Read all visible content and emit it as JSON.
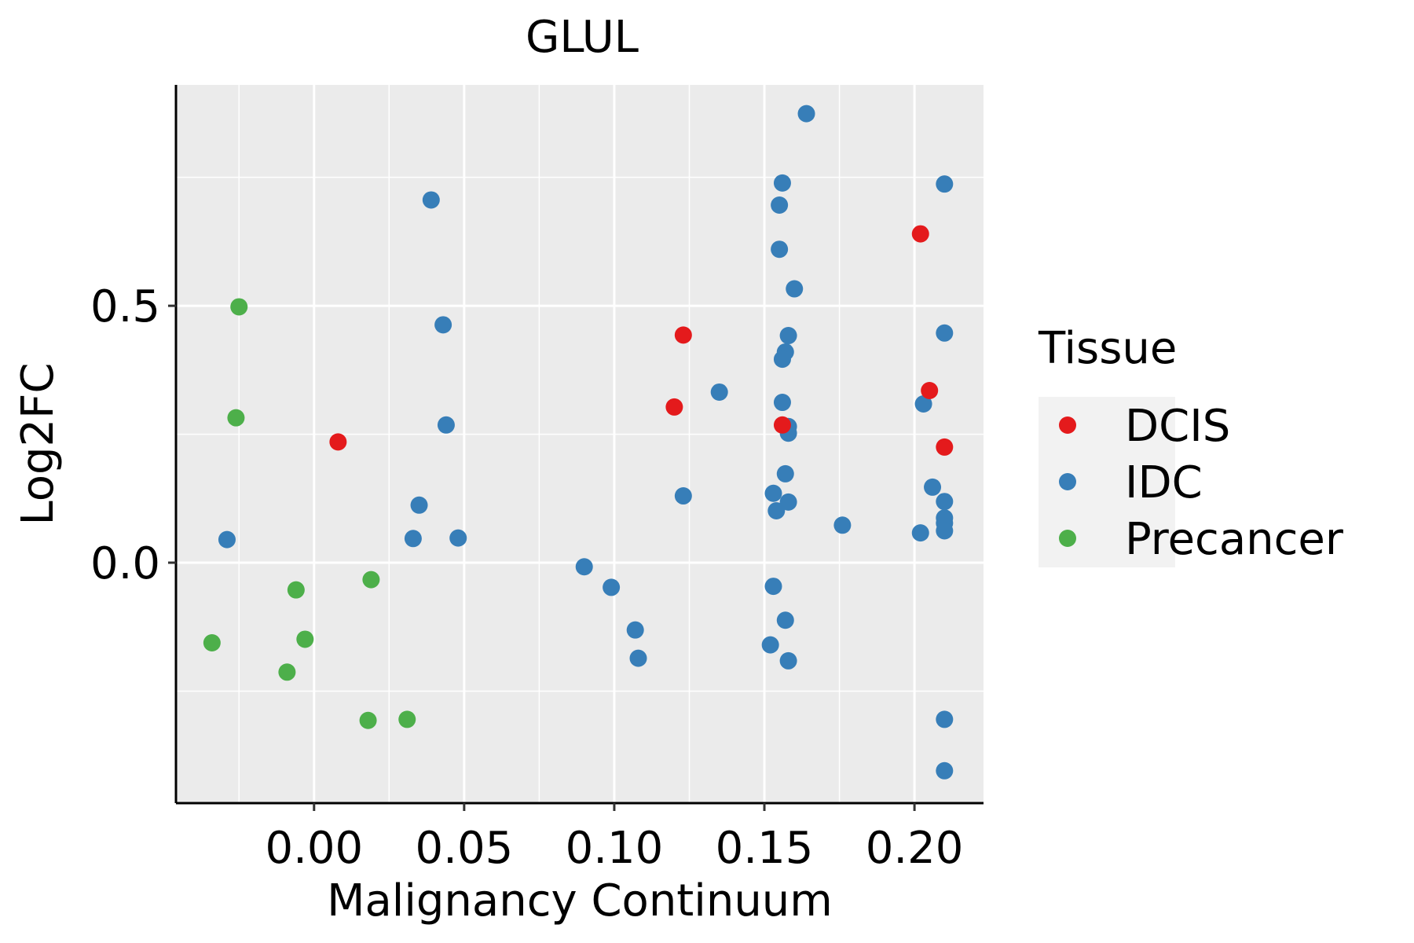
{
  "chart_data": {
    "type": "scatter",
    "title": "GLUL",
    "xlabel": "Malignancy Continuum",
    "ylabel": "Log2FC",
    "xlim": [
      -0.046,
      0.223
    ],
    "ylim": [
      -0.468,
      0.93
    ],
    "x_ticks": [
      0.0,
      0.05,
      0.1,
      0.15,
      0.2
    ],
    "x_tick_labels": [
      "0.00",
      "0.05",
      "0.10",
      "0.15",
      "0.20"
    ],
    "y_ticks": [
      0.0,
      0.5
    ],
    "y_tick_labels": [
      "0.0",
      "0.5"
    ],
    "grid": true,
    "legend": {
      "title": "Tissue",
      "position": "right",
      "entries": [
        {
          "name": "DCIS",
          "color": "#E41A1C"
        },
        {
          "name": "IDC",
          "color": "#377EB8"
        },
        {
          "name": "Precancer",
          "color": "#4DAF4A"
        }
      ]
    },
    "series": [
      {
        "name": "DCIS",
        "color": "#E41A1C",
        "points": [
          [
            0.008,
            0.235
          ],
          [
            0.123,
            0.443
          ],
          [
            0.12,
            0.303
          ],
          [
            0.156,
            0.268
          ],
          [
            0.202,
            0.64
          ],
          [
            0.205,
            0.335
          ],
          [
            0.21,
            0.225
          ]
        ]
      },
      {
        "name": "IDC",
        "color": "#377EB8",
        "points": [
          [
            -0.029,
            0.045
          ],
          [
            0.039,
            0.706
          ],
          [
            0.043,
            0.463
          ],
          [
            0.044,
            0.268
          ],
          [
            0.035,
            0.112
          ],
          [
            0.033,
            0.047
          ],
          [
            0.048,
            0.048
          ],
          [
            0.09,
            -0.008
          ],
          [
            0.099,
            -0.048
          ],
          [
            0.107,
            -0.131
          ],
          [
            0.108,
            -0.186
          ],
          [
            0.123,
            0.13
          ],
          [
            0.135,
            0.332
          ],
          [
            0.164,
            0.874
          ],
          [
            0.156,
            0.739
          ],
          [
            0.155,
            0.696
          ],
          [
            0.155,
            0.61
          ],
          [
            0.16,
            0.533
          ],
          [
            0.158,
            0.442
          ],
          [
            0.157,
            0.41
          ],
          [
            0.156,
            0.396
          ],
          [
            0.156,
            0.312
          ],
          [
            0.158,
            0.265
          ],
          [
            0.158,
            0.252
          ],
          [
            0.157,
            0.173
          ],
          [
            0.153,
            0.135
          ],
          [
            0.158,
            0.118
          ],
          [
            0.154,
            0.101
          ],
          [
            0.176,
            0.073
          ],
          [
            0.153,
            -0.046
          ],
          [
            0.157,
            -0.112
          ],
          [
            0.152,
            -0.16
          ],
          [
            0.158,
            -0.191
          ],
          [
            0.21,
            0.737
          ],
          [
            0.21,
            0.447
          ],
          [
            0.203,
            0.309
          ],
          [
            0.206,
            0.147
          ],
          [
            0.21,
            0.119
          ],
          [
            0.21,
            0.087
          ],
          [
            0.21,
            0.077
          ],
          [
            0.202,
            0.058
          ],
          [
            0.21,
            0.062
          ],
          [
            0.21,
            -0.305
          ],
          [
            0.21,
            -0.405
          ]
        ]
      },
      {
        "name": "Precancer",
        "color": "#4DAF4A",
        "points": [
          [
            -0.025,
            0.498
          ],
          [
            -0.026,
            0.282
          ],
          [
            -0.034,
            -0.156
          ],
          [
            -0.006,
            -0.053
          ],
          [
            -0.003,
            -0.149
          ],
          [
            -0.009,
            -0.213
          ],
          [
            0.019,
            -0.033
          ],
          [
            0.018,
            -0.307
          ],
          [
            0.031,
            -0.305
          ]
        ]
      }
    ]
  }
}
